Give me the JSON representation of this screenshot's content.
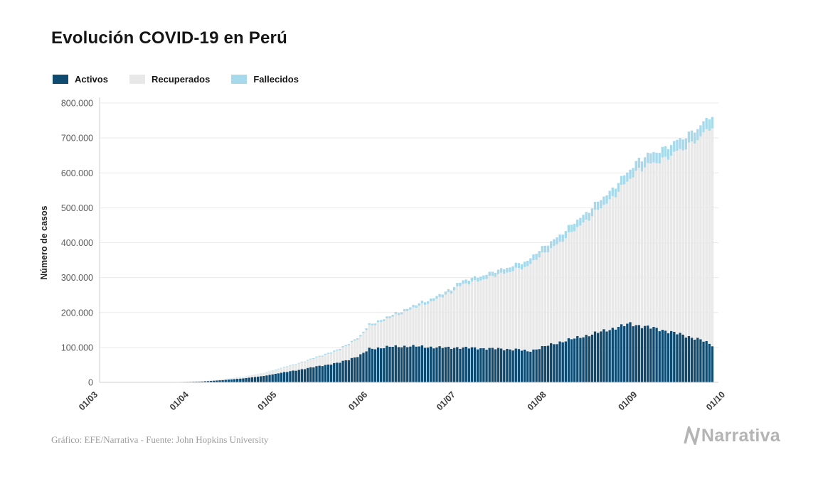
{
  "chart_data": {
    "type": "bar",
    "stacked": true,
    "title": "Evolución COVID-19 en Perú",
    "xlabel": "",
    "ylabel": "Número de casos",
    "ylim": [
      0,
      800000
    ],
    "grid": true,
    "legend_position": "top-left",
    "y_ticks": [
      "0",
      "100.000",
      "200.000",
      "300.000",
      "400.000",
      "500.000",
      "600.000",
      "700.000",
      "800.000"
    ],
    "y_tick_values": [
      0,
      100000,
      200000,
      300000,
      400000,
      500000,
      600000,
      700000,
      800000
    ],
    "x_ticks": [
      {
        "label": "01/03",
        "day": 0
      },
      {
        "label": "01/04",
        "day": 31
      },
      {
        "label": "01/05",
        "day": 61
      },
      {
        "label": "01/06",
        "day": 92
      },
      {
        "label": "01/07",
        "day": 122
      },
      {
        "label": "01/08",
        "day": 153
      },
      {
        "label": "01/09",
        "day": 184
      },
      {
        "label": "01/10",
        "day": 214
      }
    ],
    "x_domain_days": [
      0,
      214
    ],
    "series": [
      {
        "key": "activos",
        "name": "Activos",
        "color": "#0f4b70"
      },
      {
        "key": "recuperados",
        "name": "Recuperados",
        "color": "#e8e8e8"
      },
      {
        "key": "fallecidos",
        "name": "Fallecidos",
        "color": "#a6d9ec"
      }
    ],
    "anchor_format": [
      "day_from_01_03",
      "activos",
      "recuperados",
      "fallecidos"
    ],
    "anchors": [
      [
        14,
        100,
        0,
        0
      ],
      [
        21,
        400,
        50,
        5
      ],
      [
        28,
        1100,
        300,
        30
      ],
      [
        35,
        2600,
        900,
        100
      ],
      [
        42,
        6500,
        2000,
        250
      ],
      [
        49,
        11500,
        4200,
        450
      ],
      [
        56,
        18500,
        7500,
        780
      ],
      [
        61,
        26000,
        12000,
        1100
      ],
      [
        68,
        36000,
        18000,
        1700
      ],
      [
        75,
        47000,
        26000,
        2400
      ],
      [
        82,
        57000,
        36000,
        3200
      ],
      [
        89,
        78000,
        52000,
        4100
      ],
      [
        92,
        96000,
        65000,
        4600
      ],
      [
        99,
        102000,
        82000,
        5600
      ],
      [
        106,
        104000,
        105000,
        6700
      ],
      [
        113,
        101000,
        130000,
        7800
      ],
      [
        120,
        99000,
        158000,
        9100
      ],
      [
        122,
        100000,
        175000,
        9900
      ],
      [
        129,
        98000,
        193000,
        11200
      ],
      [
        136,
        96000,
        212000,
        12600
      ],
      [
        143,
        94000,
        232000,
        14100
      ],
      [
        146,
        89000,
        241000,
        15600
      ],
      [
        148,
        93000,
        257000,
        17100
      ],
      [
        153,
        106000,
        270000,
        19400
      ],
      [
        160,
        122000,
        300000,
        20900
      ],
      [
        167,
        136000,
        335000,
        22400
      ],
      [
        174,
        152000,
        370000,
        24300
      ],
      [
        181,
        168000,
        415000,
        26400
      ],
      [
        184,
        163000,
        448000,
        28800
      ],
      [
        191,
        152000,
        482000,
        30100
      ],
      [
        198,
        138000,
        526000,
        31100
      ],
      [
        205,
        122000,
        580000,
        31900
      ],
      [
        209,
        107000,
        629000,
        32500
      ]
    ]
  },
  "footer": {
    "caption": "Gráfico: EFE/Narrativa - Fuente: John Hopkins University",
    "brand": "Narrativa"
  }
}
